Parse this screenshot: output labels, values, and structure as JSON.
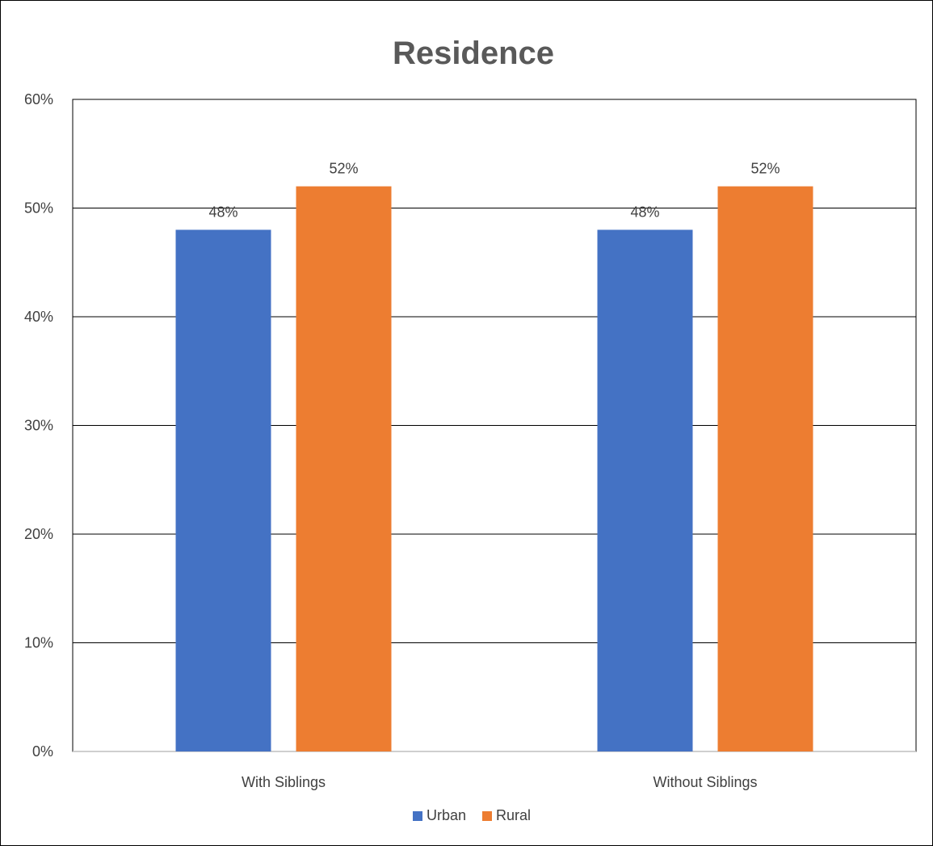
{
  "chart_data": {
    "type": "bar",
    "title": "Residence",
    "categories": [
      "With Siblings",
      "Without Siblings"
    ],
    "series": [
      {
        "name": "Urban",
        "values": [
          48,
          48
        ],
        "color": "#4472C4"
      },
      {
        "name": "Rural",
        "values": [
          52,
          52
        ],
        "color": "#ED7D31"
      }
    ],
    "data_labels": [
      [
        "48%",
        "48%"
      ],
      [
        "52%",
        "52%"
      ]
    ],
    "ylim": [
      0,
      60
    ],
    "yticks": [
      0,
      10,
      20,
      30,
      40,
      50,
      60
    ],
    "ytick_labels": [
      "0%",
      "10%",
      "20%",
      "30%",
      "40%",
      "50%",
      "60%"
    ],
    "value_suffix": "%",
    "xlabel": "",
    "ylabel": "",
    "grid": true,
    "legend_position": "bottom"
  }
}
